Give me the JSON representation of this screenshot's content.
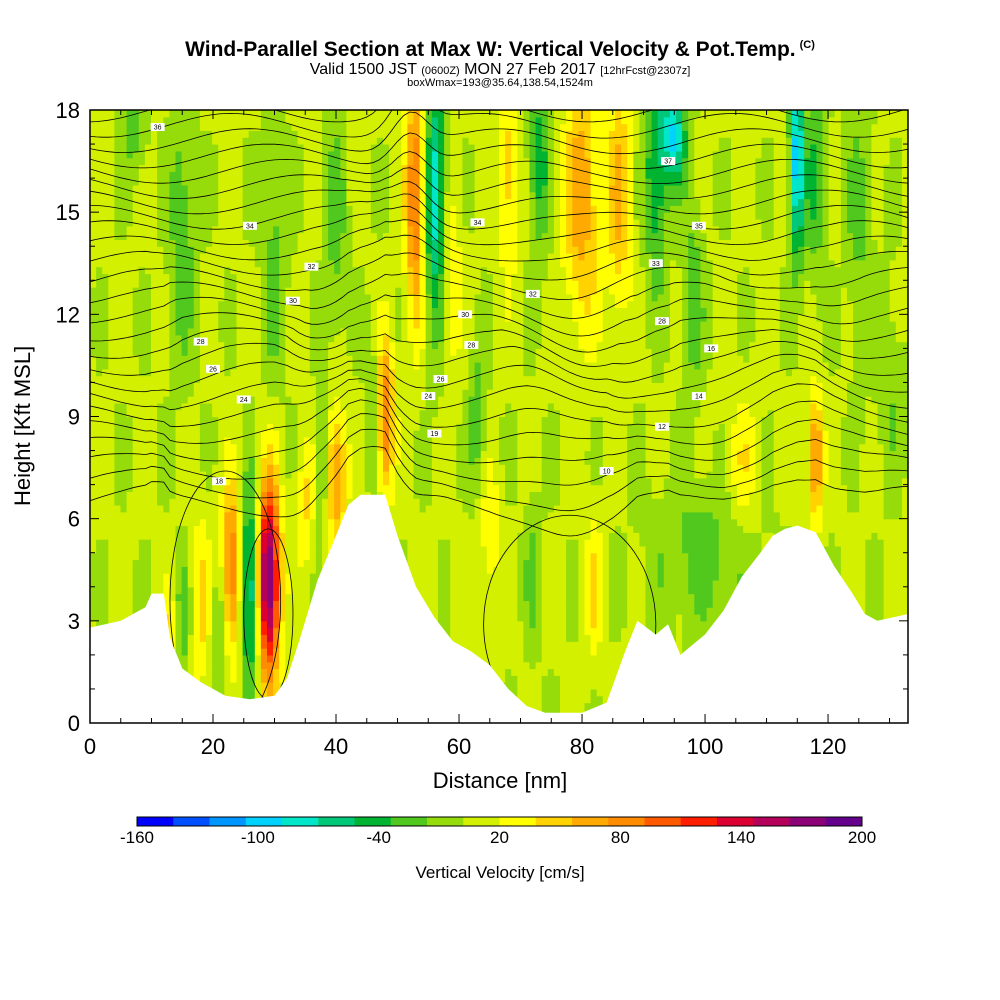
{
  "header": {
    "title": "Wind-Parallel Section at Max W: Vertical Velocity & Pot.Temp.",
    "copyright": "(C)",
    "valid_prefix": "Valid 1500 JST",
    "valid_z": "(0600Z)",
    "valid_date": "MON 27 Feb 2017",
    "forecast": "[12hrFcst@2307z]",
    "box_info": "boxWmax=193@35.64,138.54,1524m"
  },
  "chart_data": {
    "type": "heatmap",
    "title": "Wind-Parallel Section at Max W: Vertical Velocity & Pot.Temp.",
    "xlabel": "Distance [nm]",
    "ylabel": "Height [Kft MSL]",
    "xlim": [
      0,
      133
    ],
    "ylim": [
      0,
      18
    ],
    "x_ticks": [
      0,
      20,
      40,
      60,
      80,
      100,
      120
    ],
    "y_ticks": [
      0,
      3,
      6,
      9,
      12,
      15,
      18
    ],
    "grid": false,
    "colorbar": {
      "label": "Vertical Velocity [cm/s]",
      "ticks": [
        -160,
        -100,
        -40,
        20,
        80,
        140,
        200
      ],
      "bounds": [
        -160,
        200
      ],
      "colors": [
        "#0000ff",
        "#0050ff",
        "#0096ff",
        "#00d2ff",
        "#00e6c8",
        "#00c878",
        "#00b432",
        "#50c81e",
        "#96dc0a",
        "#d2f000",
        "#ffff00",
        "#ffd200",
        "#ffaa00",
        "#ff8c00",
        "#ff5a00",
        "#ff1e00",
        "#dc0032",
        "#b4005a",
        "#8c0078",
        "#64008c"
      ]
    },
    "background_value": 5,
    "terrain_kft": [
      [
        0,
        2.8
      ],
      [
        5,
        3.0
      ],
      [
        9,
        3.4
      ],
      [
        10,
        3.8
      ],
      [
        12,
        3.8
      ],
      [
        13,
        2.5
      ],
      [
        15,
        1.6
      ],
      [
        18,
        1.2
      ],
      [
        20,
        1.0
      ],
      [
        22,
        0.8
      ],
      [
        26,
        0.7
      ],
      [
        30,
        0.8
      ],
      [
        32,
        1.3
      ],
      [
        34,
        2.4
      ],
      [
        37,
        4.2
      ],
      [
        40,
        5.5
      ],
      [
        42,
        6.4
      ],
      [
        44,
        6.7
      ],
      [
        48,
        6.7
      ],
      [
        50,
        5.5
      ],
      [
        53,
        4.0
      ],
      [
        56,
        3.1
      ],
      [
        59,
        2.4
      ],
      [
        62,
        2.1
      ],
      [
        65,
        1.7
      ],
      [
        68,
        1.0
      ],
      [
        71,
        0.5
      ],
      [
        74,
        0.3
      ],
      [
        80,
        0.3
      ],
      [
        84,
        0.6
      ],
      [
        87,
        2.1
      ],
      [
        89,
        3.0
      ],
      [
        92,
        2.6
      ],
      [
        94,
        2.9
      ],
      [
        96,
        2.0
      ],
      [
        100,
        2.6
      ],
      [
        103,
        3.3
      ],
      [
        106,
        4.3
      ],
      [
        109,
        5.0
      ],
      [
        111,
        5.5
      ],
      [
        113,
        5.7
      ],
      [
        115,
        5.8
      ],
      [
        118,
        5.6
      ],
      [
        121,
        4.6
      ],
      [
        124,
        3.8
      ],
      [
        126,
        3.2
      ],
      [
        128,
        3.0
      ],
      [
        133,
        3.2
      ]
    ],
    "vertical_velocity_features": [
      {
        "x": 29,
        "z": 4.2,
        "w": 190,
        "sx": 1.3,
        "sz": 2.0
      },
      {
        "x": 26,
        "z": 4.0,
        "w": -95,
        "sx": 1.1,
        "sz": 2.0
      },
      {
        "x": 23,
        "z": 4.5,
        "w": 95,
        "sx": 1.2,
        "sz": 1.7
      },
      {
        "x": 21,
        "z": 3.0,
        "w": -35,
        "sx": 1.0,
        "sz": 1.5
      },
      {
        "x": 18,
        "z": 3.5,
        "w": 40,
        "sx": 1.2,
        "sz": 1.8
      },
      {
        "x": 15,
        "z": 3.0,
        "w": -35,
        "sx": 1.0,
        "sz": 1.3
      },
      {
        "x": 13,
        "z": 2.5,
        "w": 40,
        "sx": 1.0,
        "sz": 1.0
      },
      {
        "x": 40,
        "z": 7.3,
        "w": 80,
        "sx": 1.2,
        "sz": 1.4
      },
      {
        "x": 38,
        "z": 7.5,
        "w": -35,
        "sx": 0.8,
        "sz": 1.4
      },
      {
        "x": 35,
        "z": 6.5,
        "w": 35,
        "sx": 1.0,
        "sz": 1.4
      },
      {
        "x": 48,
        "z": 9.0,
        "w": 90,
        "sx": 1.0,
        "sz": 1.6
      },
      {
        "x": 46,
        "z": 9.2,
        "w": -30,
        "sx": 0.8,
        "sz": 1.5
      },
      {
        "x": 53,
        "z": 15.5,
        "w": 95,
        "sx": 1.2,
        "sz": 2.5
      },
      {
        "x": 56,
        "z": 15.5,
        "w": -90,
        "sx": 1.2,
        "sz": 2.6
      },
      {
        "x": 59,
        "z": 13.0,
        "w": 35,
        "sx": 1.0,
        "sz": 1.8
      },
      {
        "x": 63,
        "z": 9.0,
        "w": -35,
        "sx": 1.0,
        "sz": 1.5
      },
      {
        "x": 68,
        "z": 16.0,
        "w": 45,
        "sx": 1.2,
        "sz": 2.0
      },
      {
        "x": 73,
        "z": 16.5,
        "w": -50,
        "sx": 1.2,
        "sz": 1.8
      },
      {
        "x": 80,
        "z": 15.5,
        "w": 65,
        "sx": 2.0,
        "sz": 2.8
      },
      {
        "x": 86,
        "z": 15.5,
        "w": 55,
        "sx": 1.4,
        "sz": 2.5
      },
      {
        "x": 92,
        "z": 16.2,
        "w": -60,
        "sx": 1.3,
        "sz": 2.2
      },
      {
        "x": 95,
        "z": 17.3,
        "w": -95,
        "sx": 1.3,
        "sz": 1.0
      },
      {
        "x": 98,
        "z": 12.5,
        "w": -35,
        "sx": 1.2,
        "sz": 2.0
      },
      {
        "x": 115,
        "z": 16.5,
        "w": -110,
        "sx": 0.8,
        "sz": 2.0
      },
      {
        "x": 118,
        "z": 16.0,
        "w": -40,
        "sx": 1.1,
        "sz": 2.0
      },
      {
        "x": 118,
        "z": 7.8,
        "w": 85,
        "sx": 0.8,
        "sz": 1.3
      },
      {
        "x": 15,
        "z": 14.5,
        "w": -35,
        "sx": 1.5,
        "sz": 2.8
      },
      {
        "x": 7,
        "z": 17.5,
        "w": -30,
        "sx": 1.5,
        "sz": 1.0
      },
      {
        "x": 30,
        "z": 13.5,
        "w": -30,
        "sx": 1.4,
        "sz": 2.5
      },
      {
        "x": 40,
        "z": 14.5,
        "w": -30,
        "sx": 1.2,
        "sz": 2.5
      },
      {
        "x": 100,
        "z": 5.0,
        "w": -30,
        "sx": 6.0,
        "sz": 1.5
      },
      {
        "x": 82,
        "z": 4.0,
        "w": 35,
        "sx": 1.0,
        "sz": 1.5
      },
      {
        "x": 72,
        "z": 4.5,
        "w": -25,
        "sx": 1.0,
        "sz": 1.6
      },
      {
        "x": 65,
        "z": 5.5,
        "w": 30,
        "sx": 1.2,
        "sz": 1.5
      },
      {
        "x": 106,
        "z": 7.5,
        "w": 30,
        "sx": 2.0,
        "sz": 1.5
      },
      {
        "x": 125,
        "z": 15.0,
        "w": -25,
        "sx": 1.5,
        "sz": 3.0
      },
      {
        "x": 130,
        "z": 10.0,
        "w": -20,
        "sx": 1.5,
        "sz": 2.0
      }
    ],
    "theta_contour_labels": [
      {
        "x": 11,
        "z": 17.5,
        "text": "36"
      },
      {
        "x": 26,
        "z": 14.6,
        "text": "34"
      },
      {
        "x": 36,
        "z": 13.4,
        "text": "32"
      },
      {
        "x": 33,
        "z": 12.4,
        "text": "30"
      },
      {
        "x": 18,
        "z": 11.2,
        "text": "28"
      },
      {
        "x": 20,
        "z": 10.4,
        "text": "26"
      },
      {
        "x": 25,
        "z": 9.5,
        "text": "24"
      },
      {
        "x": 21,
        "z": 7.1,
        "text": "18"
      },
      {
        "x": 63,
        "z": 14.7,
        "text": "34"
      },
      {
        "x": 72,
        "z": 12.6,
        "text": "32"
      },
      {
        "x": 61,
        "z": 12.0,
        "text": "30"
      },
      {
        "x": 62,
        "z": 11.1,
        "text": "28"
      },
      {
        "x": 57,
        "z": 10.1,
        "text": "26"
      },
      {
        "x": 55,
        "z": 9.6,
        "text": "24"
      },
      {
        "x": 56,
        "z": 8.5,
        "text": "19"
      },
      {
        "x": 84,
        "z": 7.4,
        "text": "10"
      },
      {
        "x": 94,
        "z": 16.5,
        "text": "37"
      },
      {
        "x": 99,
        "z": 14.6,
        "text": "35"
      },
      {
        "x": 92,
        "z": 13.5,
        "text": "33"
      },
      {
        "x": 93,
        "z": 11.8,
        "text": "28"
      },
      {
        "x": 101,
        "z": 11.0,
        "text": "16"
      },
      {
        "x": 99,
        "z": 9.6,
        "text": "14"
      },
      {
        "x": 93,
        "z": 8.7,
        "text": "12"
      }
    ]
  }
}
